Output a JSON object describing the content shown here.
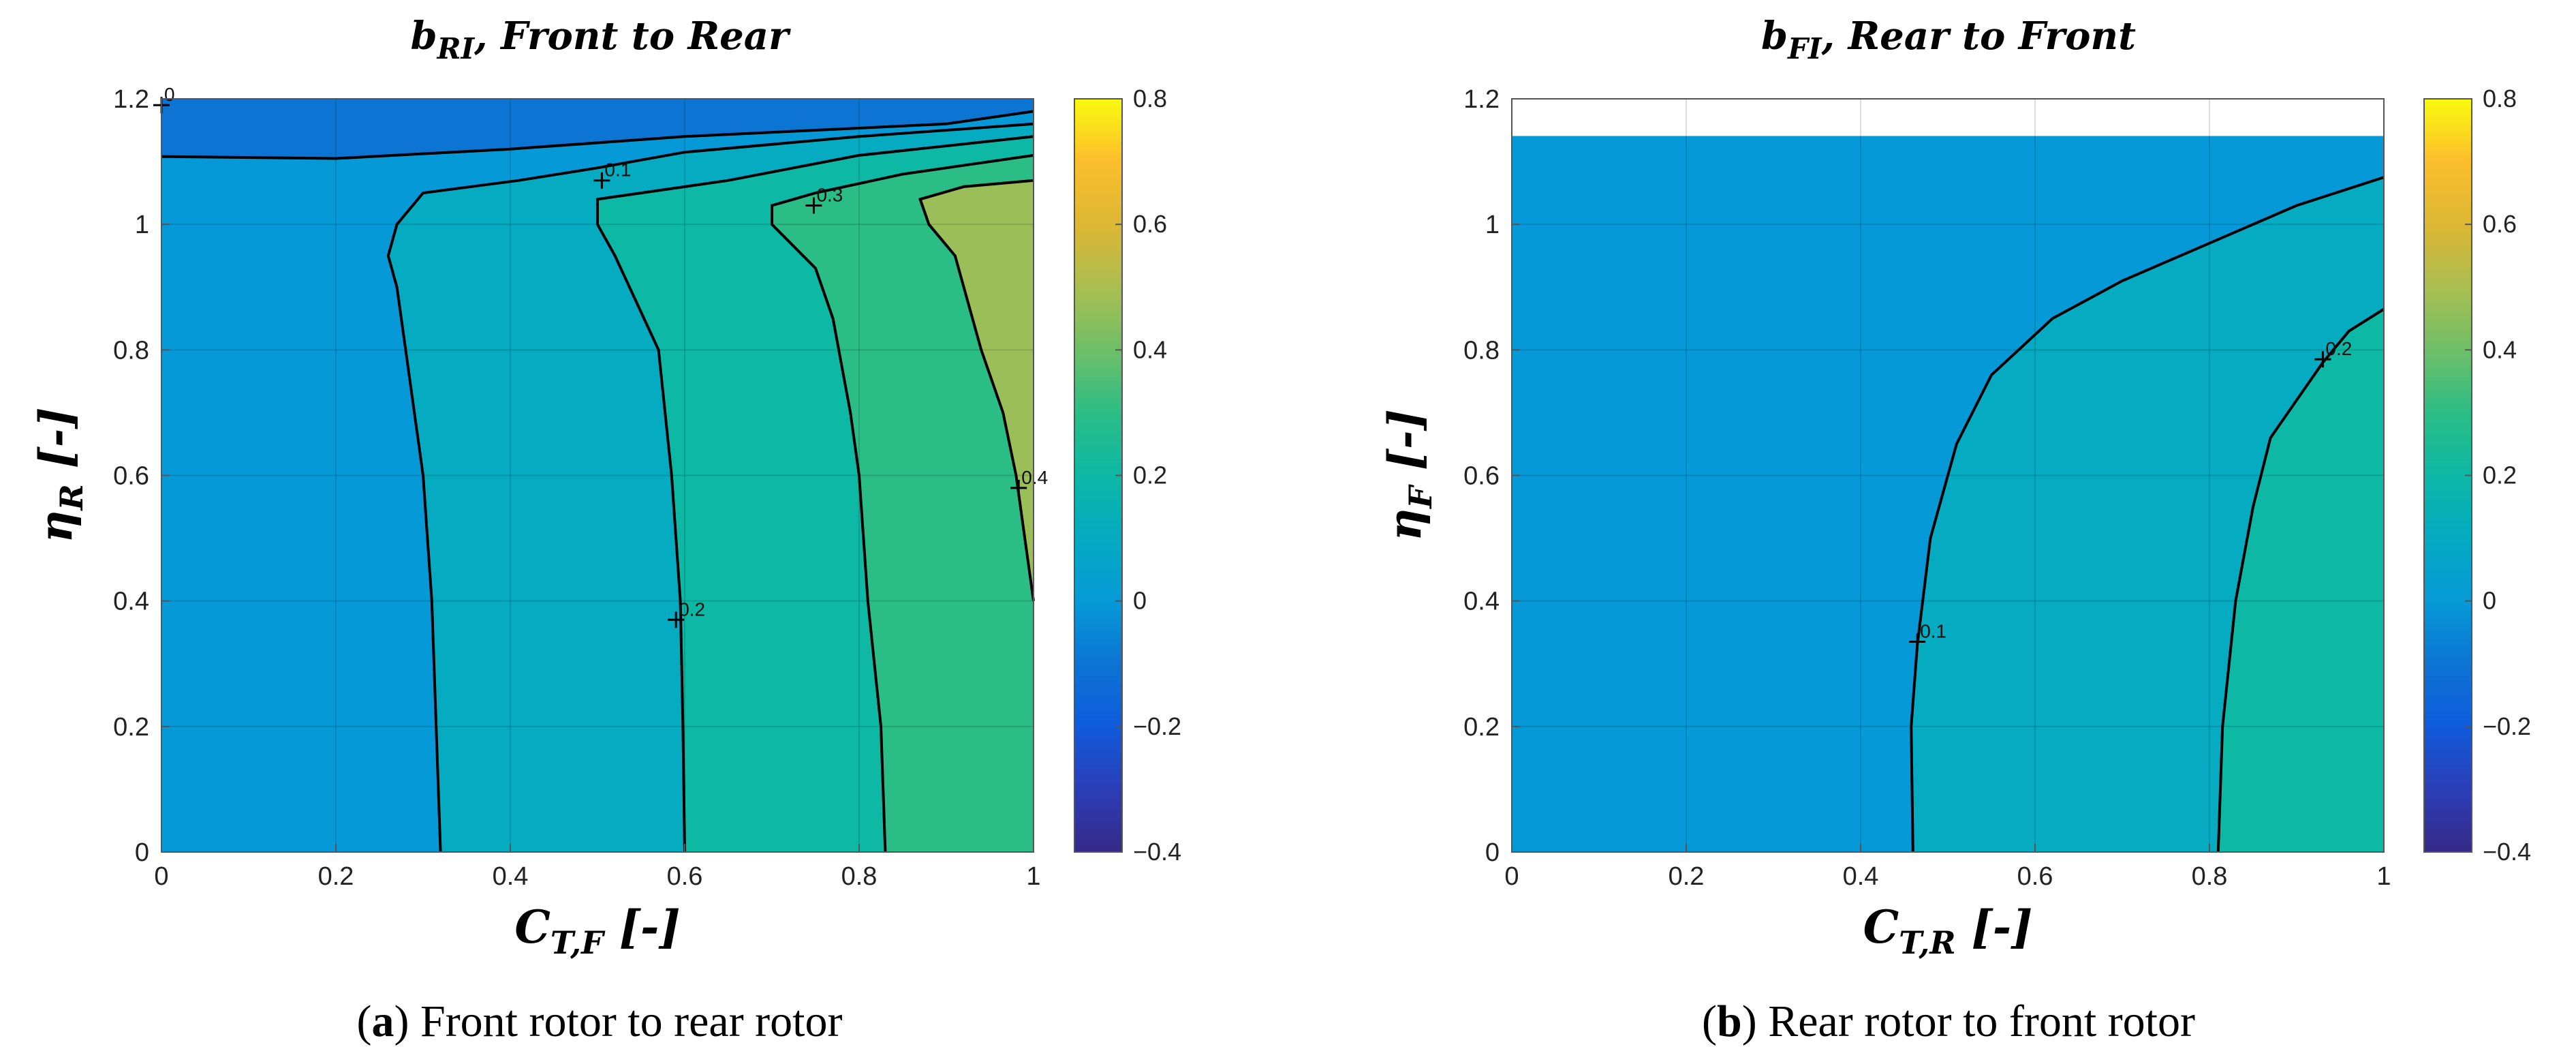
{
  "chart_data": [
    {
      "type": "contour",
      "panel": "a",
      "title_main": "b",
      "title_sub": "RI",
      "title_rest": ", Front to Rear",
      "xlabel_main": "C",
      "xlabel_sub": "T,F",
      "xlabel_rest": " [-]",
      "ylabel_main": "η",
      "ylabel_sub": "R",
      "ylabel_rest": " [-]",
      "xlim": [
        0,
        1
      ],
      "ylim": [
        0,
        1.2
      ],
      "xticks": [
        "0",
        "0.2",
        "0.4",
        "0.6",
        "0.8",
        "1"
      ],
      "yticks": [
        "0",
        "0.2",
        "0.4",
        "0.6",
        "0.8",
        "1",
        "1.2"
      ],
      "colorbar": {
        "min": -0.4,
        "max": 0.8,
        "ticks": [
          "−0.4",
          "−0.2",
          "0",
          "0.2",
          "0.4",
          "0.6",
          "0.8"
        ]
      },
      "regions": [
        {
          "level": 0.0,
          "color": "#0c74d2",
          "points": [
            [
              0,
              1.2
            ],
            [
              1,
              1.2
            ],
            [
              1,
              1.18
            ],
            [
              0.9,
              1.16
            ],
            [
              0.6,
              1.14
            ],
            [
              0.4,
              1.12
            ],
            [
              0.2,
              1.105
            ],
            [
              0,
              1.108
            ]
          ]
        },
        {
          "level": 0.1,
          "color": "#0699d8",
          "points": [
            [
              0,
              1.108
            ],
            [
              0.2,
              1.105
            ],
            [
              0.4,
              1.12
            ],
            [
              0.6,
              1.14
            ],
            [
              0.9,
              1.16
            ],
            [
              1,
              1.18
            ],
            [
              1,
              1.16
            ],
            [
              0.8,
              1.14
            ],
            [
              0.6,
              1.115
            ],
            [
              0.5,
              1.09
            ],
            [
              0.41,
              1.07
            ],
            [
              0.3,
              1.05
            ],
            [
              0.27,
              1.0
            ],
            [
              0.26,
              0.95
            ],
            [
              0.27,
              0.9
            ],
            [
              0.28,
              0.8
            ],
            [
              0.3,
              0.6
            ],
            [
              0.31,
              0.4
            ],
            [
              0.315,
              0.2
            ],
            [
              0.32,
              0
            ],
            [
              0,
              0
            ]
          ]
        },
        {
          "level": 0.2,
          "color": "#04abc1",
          "points": [
            [
              0.32,
              0
            ],
            [
              0.315,
              0.2
            ],
            [
              0.31,
              0.4
            ],
            [
              0.3,
              0.6
            ],
            [
              0.28,
              0.8
            ],
            [
              0.27,
              0.9
            ],
            [
              0.26,
              0.95
            ],
            [
              0.27,
              1.0
            ],
            [
              0.3,
              1.05
            ],
            [
              0.41,
              1.07
            ],
            [
              0.5,
              1.09
            ],
            [
              0.6,
              1.115
            ],
            [
              0.8,
              1.14
            ],
            [
              1,
              1.16
            ],
            [
              1,
              1.14
            ],
            [
              0.8,
              1.11
            ],
            [
              0.65,
              1.07
            ],
            [
              0.55,
              1.05
            ],
            [
              0.5,
              1.04
            ],
            [
              0.5,
              1.0
            ],
            [
              0.52,
              0.95
            ],
            [
              0.57,
              0.8
            ],
            [
              0.585,
              0.6
            ],
            [
              0.595,
              0.4
            ],
            [
              0.598,
              0.2
            ],
            [
              0.6,
              0
            ]
          ]
        },
        {
          "level": 0.3,
          "color": "#0db8a5",
          "points": [
            [
              0.6,
              0
            ],
            [
              0.598,
              0.2
            ],
            [
              0.595,
              0.4
            ],
            [
              0.585,
              0.6
            ],
            [
              0.57,
              0.8
            ],
            [
              0.52,
              0.95
            ],
            [
              0.5,
              1.0
            ],
            [
              0.5,
              1.04
            ],
            [
              0.55,
              1.05
            ],
            [
              0.65,
              1.07
            ],
            [
              0.8,
              1.11
            ],
            [
              1,
              1.14
            ],
            [
              1,
              1.11
            ],
            [
              0.85,
              1.08
            ],
            [
              0.75,
              1.05
            ],
            [
              0.7,
              1.03
            ],
            [
              0.7,
              1.0
            ],
            [
              0.75,
              0.93
            ],
            [
              0.77,
              0.85
            ],
            [
              0.79,
              0.7
            ],
            [
              0.8,
              0.6
            ],
            [
              0.81,
              0.4
            ],
            [
              0.825,
              0.2
            ],
            [
              0.83,
              0
            ]
          ]
        },
        {
          "level": 0.4,
          "color": "#2abd86",
          "points": [
            [
              0.83,
              0
            ],
            [
              0.825,
              0.2
            ],
            [
              0.81,
              0.4
            ],
            [
              0.8,
              0.6
            ],
            [
              0.79,
              0.7
            ],
            [
              0.77,
              0.85
            ],
            [
              0.75,
              0.93
            ],
            [
              0.7,
              1.0
            ],
            [
              0.7,
              1.03
            ],
            [
              0.75,
              1.05
            ],
            [
              0.85,
              1.08
            ],
            [
              1,
              1.11
            ],
            [
              1,
              1.07
            ],
            [
              0.92,
              1.06
            ],
            [
              0.87,
              1.04
            ],
            [
              0.88,
              1.0
            ],
            [
              0.91,
              0.95
            ],
            [
              0.94,
              0.8
            ],
            [
              0.965,
              0.7
            ],
            [
              0.98,
              0.6
            ],
            [
              1,
              0.4
            ],
            [
              1,
              0
            ]
          ]
        },
        {
          "level": 0.5,
          "color": "#9bbe58",
          "points": [
            [
              1,
              0.4
            ],
            [
              0.98,
              0.6
            ],
            [
              0.965,
              0.7
            ],
            [
              0.94,
              0.8
            ],
            [
              0.91,
              0.95
            ],
            [
              0.88,
              1.0
            ],
            [
              0.87,
              1.04
            ],
            [
              0.92,
              1.06
            ],
            [
              1,
              1.07
            ]
          ]
        }
      ],
      "contours": [
        {
          "label": "0",
          "points": [
            [
              0,
              1.108
            ],
            [
              0.2,
              1.105
            ],
            [
              0.4,
              1.12
            ],
            [
              0.6,
              1.14
            ],
            [
              0.9,
              1.16
            ],
            [
              1,
              1.18
            ]
          ]
        },
        {
          "label": "0.1",
          "points": [
            [
              0.32,
              0
            ],
            [
              0.315,
              0.2
            ],
            [
              0.31,
              0.4
            ],
            [
              0.3,
              0.6
            ],
            [
              0.28,
              0.8
            ],
            [
              0.27,
              0.9
            ],
            [
              0.26,
              0.95
            ],
            [
              0.27,
              1.0
            ],
            [
              0.3,
              1.05
            ],
            [
              0.41,
              1.07
            ],
            [
              0.5,
              1.09
            ],
            [
              0.6,
              1.115
            ],
            [
              0.8,
              1.14
            ],
            [
              1,
              1.16
            ]
          ]
        },
        {
          "label": "0.2",
          "points": [
            [
              0.6,
              0
            ],
            [
              0.598,
              0.2
            ],
            [
              0.595,
              0.4
            ],
            [
              0.585,
              0.6
            ],
            [
              0.57,
              0.8
            ],
            [
              0.52,
              0.95
            ],
            [
              0.5,
              1.0
            ],
            [
              0.5,
              1.04
            ],
            [
              0.55,
              1.05
            ],
            [
              0.65,
              1.07
            ],
            [
              0.8,
              1.11
            ],
            [
              1,
              1.14
            ]
          ]
        },
        {
          "label": "0.3",
          "points": [
            [
              0.83,
              0
            ],
            [
              0.825,
              0.2
            ],
            [
              0.81,
              0.4
            ],
            [
              0.8,
              0.6
            ],
            [
              0.79,
              0.7
            ],
            [
              0.77,
              0.85
            ],
            [
              0.75,
              0.93
            ],
            [
              0.7,
              1.0
            ],
            [
              0.7,
              1.03
            ],
            [
              0.75,
              1.05
            ],
            [
              0.85,
              1.08
            ],
            [
              1,
              1.11
            ]
          ]
        },
        {
          "label": "0.4",
          "points": [
            [
              1,
              0.4
            ],
            [
              0.98,
              0.6
            ],
            [
              0.965,
              0.7
            ],
            [
              0.94,
              0.8
            ],
            [
              0.91,
              0.95
            ],
            [
              0.88,
              1.0
            ],
            [
              0.87,
              1.04
            ],
            [
              0.92,
              1.06
            ],
            [
              1,
              1.07
            ]
          ]
        }
      ],
      "contour_labels": [
        {
          "text": "0",
          "x": 0.0,
          "y": 1.19
        },
        {
          "text": "0.1",
          "x": 0.505,
          "y": 1.07
        },
        {
          "text": "0.2",
          "x": 0.59,
          "y": 0.37
        },
        {
          "text": "0.3",
          "x": 0.748,
          "y": 1.03
        },
        {
          "text": "0.4",
          "x": 0.983,
          "y": 0.58
        }
      ]
    },
    {
      "type": "contour",
      "panel": "b",
      "title_main": "b",
      "title_sub": "FI",
      "title_rest": ", Rear to Front",
      "xlabel_main": "C",
      "xlabel_sub": "T,R",
      "xlabel_rest": " [-]",
      "ylabel_main": "η",
      "ylabel_sub": "F",
      "ylabel_rest": " [-]",
      "xlim": [
        0,
        1
      ],
      "ylim": [
        0,
        1.2
      ],
      "xticks": [
        "0",
        "0.2",
        "0.4",
        "0.6",
        "0.8",
        "1"
      ],
      "yticks": [
        "0",
        "0.2",
        "0.4",
        "0.6",
        "0.8",
        "1",
        "1.2"
      ],
      "colorbar": {
        "min": -0.4,
        "max": 0.8,
        "ticks": [
          "−0.4",
          "−0.2",
          "0",
          "0.2",
          "0.4",
          "0.6",
          "0.8"
        ]
      },
      "data_top": 1.14,
      "regions": [
        {
          "level": 0.1,
          "color": "#0699d8",
          "points": [
            [
              0,
              0
            ],
            [
              0.46,
              0
            ],
            [
              0.458,
              0.2
            ],
            [
              0.465,
              0.33
            ],
            [
              0.48,
              0.5
            ],
            [
              0.51,
              0.65
            ],
            [
              0.55,
              0.76
            ],
            [
              0.62,
              0.85
            ],
            [
              0.7,
              0.91
            ],
            [
              0.8,
              0.97
            ],
            [
              0.9,
              1.03
            ],
            [
              1,
              1.075
            ],
            [
              1,
              1.14
            ],
            [
              0,
              1.14
            ]
          ]
        },
        {
          "level": 0.2,
          "color": "#04abc1",
          "points": [
            [
              0.46,
              0
            ],
            [
              0.458,
              0.2
            ],
            [
              0.465,
              0.33
            ],
            [
              0.48,
              0.5
            ],
            [
              0.51,
              0.65
            ],
            [
              0.55,
              0.76
            ],
            [
              0.62,
              0.85
            ],
            [
              0.7,
              0.91
            ],
            [
              0.8,
              0.97
            ],
            [
              0.9,
              1.03
            ],
            [
              1,
              1.075
            ],
            [
              1,
              0.865
            ],
            [
              0.96,
              0.83
            ],
            [
              0.93,
              0.78
            ],
            [
              0.9,
              0.72
            ],
            [
              0.87,
              0.66
            ],
            [
              0.85,
              0.55
            ],
            [
              0.83,
              0.4
            ],
            [
              0.815,
              0.2
            ],
            [
              0.81,
              0
            ]
          ]
        },
        {
          "level": 0.3,
          "color": "#0db8a5",
          "points": [
            [
              0.81,
              0
            ],
            [
              0.815,
              0.2
            ],
            [
              0.83,
              0.4
            ],
            [
              0.85,
              0.55
            ],
            [
              0.87,
              0.66
            ],
            [
              0.9,
              0.72
            ],
            [
              0.93,
              0.78
            ],
            [
              0.96,
              0.83
            ],
            [
              1,
              0.865
            ],
            [
              1,
              0
            ]
          ]
        }
      ],
      "contours": [
        {
          "label": "0.1",
          "points": [
            [
              0.46,
              0
            ],
            [
              0.458,
              0.2
            ],
            [
              0.465,
              0.33
            ],
            [
              0.48,
              0.5
            ],
            [
              0.51,
              0.65
            ],
            [
              0.55,
              0.76
            ],
            [
              0.62,
              0.85
            ],
            [
              0.7,
              0.91
            ],
            [
              0.8,
              0.97
            ],
            [
              0.9,
              1.03
            ],
            [
              1,
              1.075
            ]
          ]
        },
        {
          "label": "0.2",
          "points": [
            [
              0.81,
              0
            ],
            [
              0.815,
              0.2
            ],
            [
              0.83,
              0.4
            ],
            [
              0.85,
              0.55
            ],
            [
              0.87,
              0.66
            ],
            [
              0.9,
              0.72
            ],
            [
              0.93,
              0.78
            ],
            [
              0.96,
              0.83
            ],
            [
              1,
              0.865
            ]
          ]
        }
      ],
      "contour_labels": [
        {
          "text": "0.1",
          "x": 0.465,
          "y": 0.335
        },
        {
          "text": "0.2",
          "x": 0.93,
          "y": 0.785
        }
      ]
    }
  ],
  "captions": [
    {
      "letter": "a",
      "text": " Front rotor to rear rotor"
    },
    {
      "letter": "b",
      "text": " Rear rotor to front rotor"
    }
  ]
}
